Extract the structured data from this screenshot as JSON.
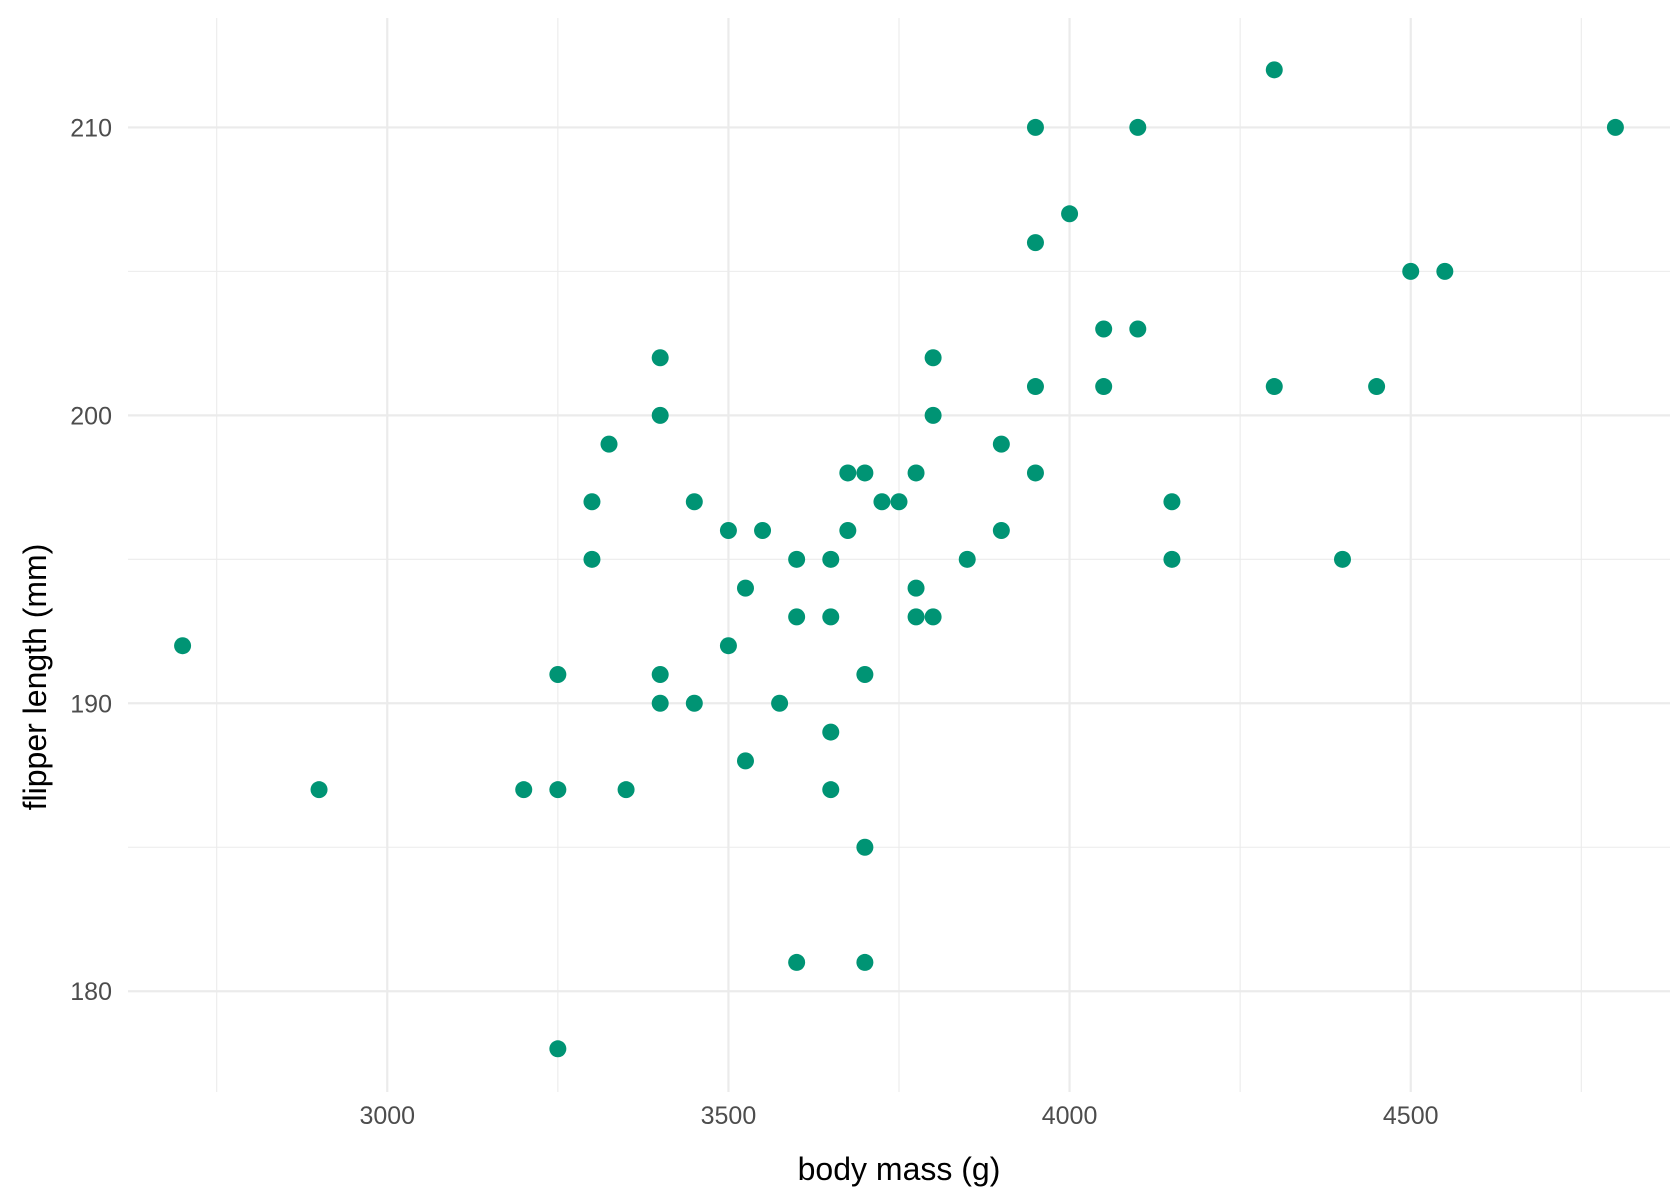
{
  "chart_data": {
    "type": "scatter",
    "title": "",
    "xlabel": "body mass (g)",
    "ylabel": "flipper length (mm)",
    "xlim": [
      2620,
      4880
    ],
    "ylim": [
      176.5,
      213.8
    ],
    "x_ticks": [
      3000,
      3500,
      4000,
      4500
    ],
    "x_tick_labels": [
      "3000",
      "3500",
      "4000",
      "4500"
    ],
    "x_minor_ticks": [
      2750,
      3250,
      3750,
      4250,
      4750
    ],
    "y_ticks": [
      180,
      190,
      200,
      210
    ],
    "y_tick_labels": [
      "180",
      "190",
      "200",
      "210"
    ],
    "y_minor_ticks": [
      185,
      195,
      205
    ],
    "grid": true,
    "legend": "none",
    "point_color": "#009474",
    "series": [
      {
        "points": [
          [
            2700,
            192
          ],
          [
            2900,
            187
          ],
          [
            3200,
            187
          ],
          [
            3250,
            191
          ],
          [
            3250,
            187
          ],
          [
            3250,
            178
          ],
          [
            3300,
            197
          ],
          [
            3300,
            195
          ],
          [
            3325,
            199
          ],
          [
            3350,
            187
          ],
          [
            3400,
            202
          ],
          [
            3400,
            200
          ],
          [
            3400,
            191
          ],
          [
            3400,
            190
          ],
          [
            3450,
            197
          ],
          [
            3450,
            190
          ],
          [
            3500,
            196
          ],
          [
            3500,
            192
          ],
          [
            3525,
            194
          ],
          [
            3525,
            188
          ],
          [
            3550,
            196
          ],
          [
            3575,
            190
          ],
          [
            3600,
            195
          ],
          [
            3600,
            193
          ],
          [
            3600,
            181
          ],
          [
            3650,
            195
          ],
          [
            3650,
            193
          ],
          [
            3650,
            189
          ],
          [
            3650,
            187
          ],
          [
            3675,
            198
          ],
          [
            3675,
            196
          ],
          [
            3700,
            198
          ],
          [
            3700,
            191
          ],
          [
            3700,
            185
          ],
          [
            3700,
            181
          ],
          [
            3725,
            197
          ],
          [
            3750,
            197
          ],
          [
            3775,
            198
          ],
          [
            3775,
            194
          ],
          [
            3775,
            193
          ],
          [
            3800,
            202
          ],
          [
            3800,
            200
          ],
          [
            3800,
            193
          ],
          [
            3850,
            195
          ],
          [
            3900,
            199
          ],
          [
            3900,
            196
          ],
          [
            3950,
            210
          ],
          [
            3950,
            206
          ],
          [
            3950,
            201
          ],
          [
            3950,
            198
          ],
          [
            4000,
            207
          ],
          [
            4050,
            203
          ],
          [
            4050,
            201
          ],
          [
            4100,
            210
          ],
          [
            4100,
            203
          ],
          [
            4150,
            197
          ],
          [
            4150,
            195
          ],
          [
            4300,
            212
          ],
          [
            4300,
            201
          ],
          [
            4400,
            195
          ],
          [
            4450,
            201
          ],
          [
            4500,
            205
          ],
          [
            4550,
            205
          ],
          [
            4800,
            210
          ]
        ]
      }
    ]
  }
}
